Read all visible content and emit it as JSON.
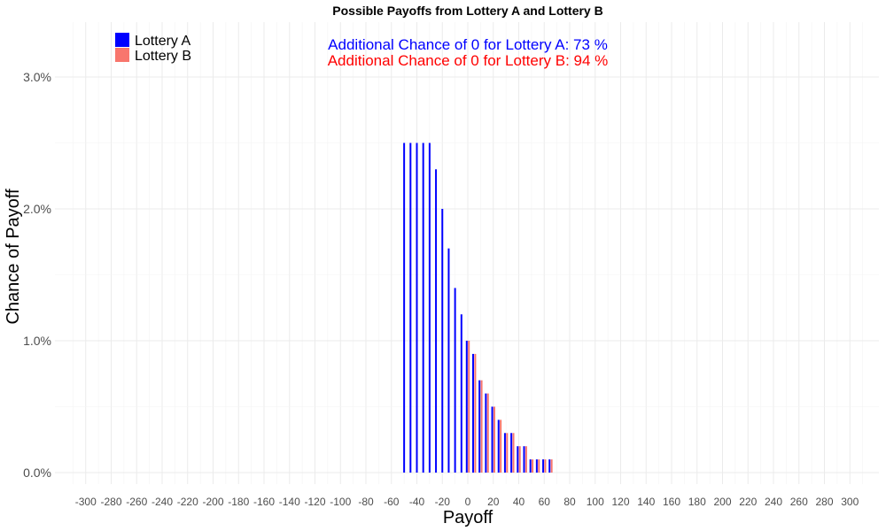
{
  "chart_data": {
    "type": "bar",
    "title": "Possible Payoffs from Lottery A and Lottery B",
    "xlabel": "Payoff",
    "ylabel": "Chance of Payoff",
    "xlim": [
      -310,
      310
    ],
    "ylim": [
      0,
      0.034
    ],
    "x_ticks": [
      -300,
      -280,
      -260,
      -240,
      -220,
      -200,
      -180,
      -160,
      -140,
      -120,
      -100,
      -80,
      -60,
      -40,
      -20,
      0,
      20,
      40,
      60,
      80,
      100,
      120,
      140,
      160,
      180,
      200,
      220,
      240,
      260,
      280,
      300
    ],
    "y_ticks": [
      0,
      0.01,
      0.02,
      0.03
    ],
    "y_tick_labels": [
      "0.0%",
      "1.0%",
      "2.0%",
      "3.0%"
    ],
    "grid": true,
    "legend_position": "top-left",
    "series": [
      {
        "name": "Lottery A",
        "color": "#0000ff",
        "x": [
          -50,
          -45,
          -40,
          -35,
          -30,
          -25,
          -20,
          -15,
          -10,
          -5,
          0,
          5,
          10,
          15,
          20,
          25,
          30,
          35,
          40,
          45,
          50,
          55,
          60,
          65
        ],
        "values": [
          0.025,
          0.025,
          0.025,
          0.025,
          0.025,
          0.023,
          0.02,
          0.017,
          0.014,
          0.012,
          0.01,
          0.009,
          0.007,
          0.006,
          0.005,
          0.004,
          0.003,
          0.003,
          0.002,
          0.002,
          0.001,
          0.001,
          0.001,
          0.001
        ]
      },
      {
        "name": "Lottery B",
        "color": "#f8766d",
        "x": [
          0,
          5,
          10,
          15,
          20,
          25,
          30,
          35,
          40,
          45,
          50,
          55,
          60,
          65
        ],
        "values": [
          0.01,
          0.009,
          0.007,
          0.006,
          0.005,
          0.004,
          0.003,
          0.003,
          0.002,
          0.002,
          0.001,
          0.001,
          0.001,
          0.001
        ]
      }
    ],
    "annotations": [
      {
        "text": "Additional Chance of 0 for Lottery A:  73 %",
        "color": "#0000ff"
      },
      {
        "text": "Additional Chance of 0 for Lottery B:  94 %",
        "color": "#ff0000"
      }
    ]
  }
}
